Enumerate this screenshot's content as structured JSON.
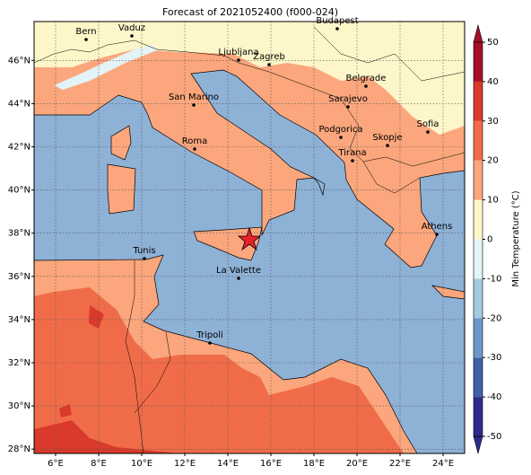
{
  "title": "Forecast of 2021052400 (f000-024)",
  "map": {
    "xlim": [
      5,
      25
    ],
    "ylim": [
      27.8,
      47.8
    ],
    "xticks": [
      {
        "value": 6,
        "label": "6°E"
      },
      {
        "value": 8,
        "label": "8°E"
      },
      {
        "value": 10,
        "label": "10°E"
      },
      {
        "value": 12,
        "label": "12°E"
      },
      {
        "value": 14,
        "label": "14°E"
      },
      {
        "value": 16,
        "label": "16°E"
      },
      {
        "value": 18,
        "label": "18°E"
      },
      {
        "value": 20,
        "label": "20°E"
      },
      {
        "value": 22,
        "label": "22°E"
      },
      {
        "value": 24,
        "label": "24°E"
      }
    ],
    "yticks": [
      {
        "value": 28,
        "label": "28°N"
      },
      {
        "value": 30,
        "label": "30°N"
      },
      {
        "value": 32,
        "label": "32°N"
      },
      {
        "value": 34,
        "label": "34°N"
      },
      {
        "value": 36,
        "label": "36°N"
      },
      {
        "value": 38,
        "label": "38°N"
      },
      {
        "value": 40,
        "label": "40°N"
      },
      {
        "value": 42,
        "label": "42°N"
      },
      {
        "value": 44,
        "label": "44°N"
      },
      {
        "value": 46,
        "label": "46°N"
      }
    ],
    "grid": true,
    "cities": [
      "Bern",
      "Vaduz",
      "Budapest",
      "Ljubljana",
      "Zagreb",
      "Belgrade",
      "Sarajevo",
      "San Marino",
      "Podgorica",
      "Sofia",
      "Roma",
      "Skopje",
      "Tirana",
      "Athens",
      "Tunis",
      "La Valette",
      "Tripoli"
    ]
  },
  "colorbar": {
    "label": "Min Temperature (°C)",
    "lim": [
      -50,
      50
    ],
    "ticks": [
      -50,
      -40,
      -30,
      -20,
      -10,
      0,
      10,
      20,
      30,
      40,
      50
    ],
    "colors": [
      "#2f2b8a",
      "#3e62a8",
      "#6b98c7",
      "#a3cbe2",
      "#e3f3f6",
      "#fdf6c9",
      "#fba67c",
      "#f06c48",
      "#d93a2b",
      "#a50f26"
    ]
  }
}
